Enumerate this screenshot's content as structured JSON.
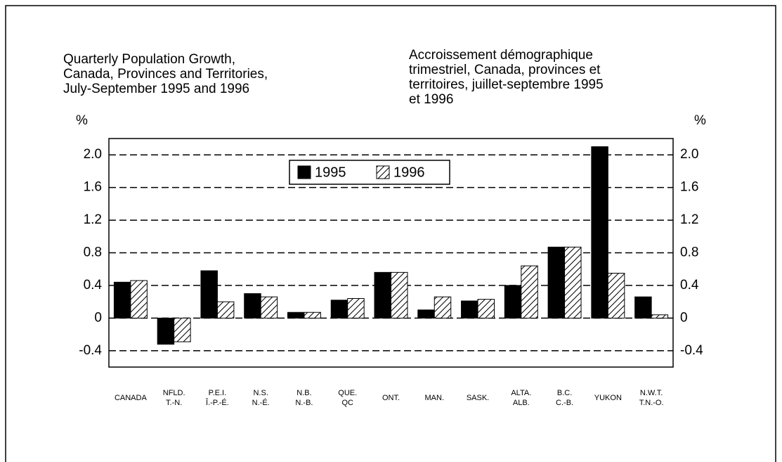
{
  "chart_data": {
    "type": "bar",
    "title": [
      "Quarterly Population Growth,",
      "Canada, Provinces and Territories,",
      "July-September 1995 and 1996"
    ],
    "title_fr": [
      "Accroissement démographique",
      "trimestriel, Canada, provinces et",
      "territoires, juillet-septembre 1995",
      "et 1996"
    ],
    "ylabel": "%",
    "y2label": "%",
    "categories": [
      [
        "CANADA"
      ],
      [
        "NFLD.",
        "T.-N."
      ],
      [
        "P.E.I.",
        "Î.-P.-É."
      ],
      [
        "N.S.",
        "N.-É."
      ],
      [
        "N.B.",
        "N.-B."
      ],
      [
        "QUE.",
        "QC"
      ],
      [
        "ONT."
      ],
      [
        "MAN."
      ],
      [
        "SASK."
      ],
      [
        "ALTA.",
        "ALB."
      ],
      [
        "B.C.",
        "C.-B."
      ],
      [
        "YUKON"
      ],
      [
        "N.W.T.",
        "T.N.-O."
      ]
    ],
    "series": [
      {
        "name": "1995",
        "color": "#000000",
        "values": [
          0.44,
          -0.32,
          0.58,
          0.3,
          0.07,
          0.22,
          0.56,
          0.1,
          0.21,
          0.4,
          0.87,
          2.1,
          0.26
        ]
      },
      {
        "name": "1996",
        "color": "hatched",
        "values": [
          0.46,
          -0.29,
          0.2,
          0.26,
          0.07,
          0.24,
          0.56,
          0.26,
          0.23,
          0.64,
          0.87,
          0.55,
          0.04
        ]
      }
    ],
    "ylim": [
      -0.6,
      2.2
    ],
    "yticks": [
      -0.4,
      0,
      0.4,
      0.8,
      1.2,
      1.6,
      {
        "value": 2,
        "label": "2.0"
      }
    ],
    "grid": true
  }
}
